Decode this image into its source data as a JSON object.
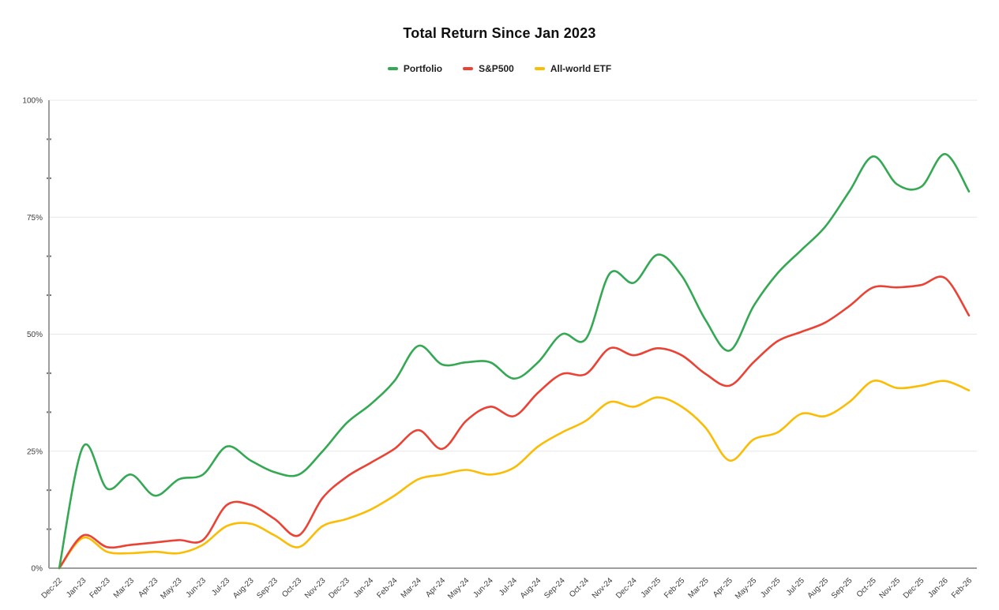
{
  "page": {
    "background": "#ffffff"
  },
  "chart_data": {
    "type": "line",
    "title": "Total Return Since Jan 2023",
    "line_smoothing": true,
    "grid": true,
    "legend_position": "top",
    "x_label_rotation": -45,
    "x_labels": [
      "Dec-22",
      "Jan-23",
      "Feb-23",
      "Mar-23",
      "Apr-23",
      "May-23",
      "Jun-23",
      "Jul-23",
      "Aug-23",
      "Sep-23",
      "Oct-23",
      "Nov-23",
      "Dec-23",
      "Jan-24",
      "Feb-24",
      "Mar-24",
      "Apr-24",
      "May-24",
      "Jun-24",
      "Jul-24",
      "Aug-24",
      "Sep-24",
      "Oct-24",
      "Nov-24",
      "Dec-24",
      "Jan-25",
      "Feb-25",
      "Mar-25",
      "Apr-25",
      "May-25",
      "Jun-25",
      "Jul-25",
      "Aug-25",
      "Sep-25",
      "Oct-25",
      "Nov-25",
      "Dec-25",
      "Jan-26",
      "Feb-26"
    ],
    "series": [
      {
        "name": "Portfolio",
        "color": "#34a853",
        "values": [
          0,
          26,
          17,
          20,
          15.5,
          19,
          20,
          26,
          23,
          20.5,
          20,
          25,
          31,
          35,
          40,
          47.5,
          43.5,
          44,
          44,
          40.5,
          44,
          50,
          49,
          63,
          61,
          67,
          62.5,
          53,
          46.5,
          56,
          63,
          68,
          73,
          80.5,
          88,
          82,
          81.5,
          88.5,
          80.5
        ]
      },
      {
        "name": "S&P500",
        "color": "#ea4335",
        "values": [
          0,
          7,
          4.5,
          5,
          5.5,
          6,
          6,
          13.5,
          13.5,
          10.5,
          7,
          15,
          19.5,
          22.5,
          25.5,
          29.5,
          25.5,
          31.5,
          34.5,
          32.5,
          37.5,
          41.5,
          41.5,
          47,
          45.5,
          47,
          45.5,
          41.5,
          39,
          44,
          48.5,
          50.5,
          52.5,
          56,
          60,
          60,
          60.5,
          62,
          54
        ]
      },
      {
        "name": "All-world ETF",
        "color": "#fbbc04",
        "values": [
          0,
          6.5,
          3.5,
          3.2,
          3.5,
          3.2,
          5,
          9,
          9.5,
          7,
          4.5,
          9,
          10.5,
          12.5,
          15.5,
          19,
          20,
          21,
          20,
          21.5,
          26,
          29,
          31.5,
          35.5,
          34.5,
          36.5,
          34.5,
          30,
          23,
          27.5,
          29,
          33,
          32.5,
          35.5,
          40,
          38.5,
          39,
          40,
          38
        ]
      }
    ],
    "y_axis": {
      "min": 0,
      "max": 100,
      "tick_values": [
        0,
        25,
        50,
        75,
        100
      ],
      "tick_labels": [
        "0%",
        "25%",
        "50%",
        "75%",
        "100%"
      ],
      "minor_ticks_per_interval": 3
    }
  },
  "styles": {
    "grid_color": "#e7e7e7",
    "axis_color": "#9e9e9e",
    "tick_color": "#757575",
    "label_color": "#3c3c3c",
    "title_color": "#0f0f0f",
    "legend_text_color": "#212121"
  }
}
